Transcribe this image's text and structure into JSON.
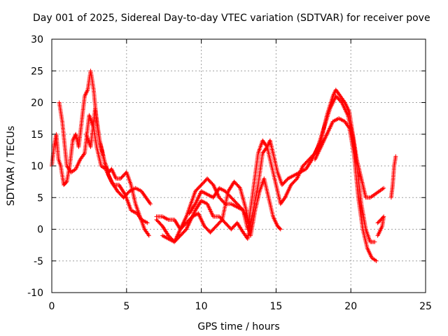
{
  "chart_data": {
    "type": "scatter",
    "title": "Day 001 of 2025, Sidereal Day-to-day VTEC variation (SDTVAR) for receiver pove",
    "xlabel": "GPS time / hours",
    "ylabel": "SDTVAR / TECUs",
    "xlim": [
      0,
      25
    ],
    "ylim": [
      -10,
      30
    ],
    "xticks": [
      0,
      5,
      10,
      15,
      20,
      25
    ],
    "yticks": [
      -10,
      -5,
      0,
      5,
      10,
      15,
      20,
      25,
      30
    ],
    "grid": true,
    "marker": "+",
    "series": [
      {
        "name": "SDTVAR",
        "color": "#ff0000",
        "tracks": [
          [
            [
              0,
              10
            ],
            [
              0.15,
              13
            ],
            [
              0.3,
              15
            ],
            [
              0.45,
              11
            ],
            [
              0.6,
              10
            ],
            [
              0.8,
              7
            ],
            [
              1.0,
              7.5
            ],
            [
              1.2,
              10
            ],
            [
              1.4,
              14
            ],
            [
              1.6,
              15
            ],
            [
              1.8,
              13
            ],
            [
              2.0,
              17
            ],
            [
              2.2,
              21
            ],
            [
              2.4,
              22
            ],
            [
              2.6,
              25
            ],
            [
              2.8,
              22
            ],
            [
              3.0,
              17
            ],
            [
              3.2,
              14
            ],
            [
              3.4,
              12
            ],
            [
              3.6,
              10
            ],
            [
              3.8,
              9
            ],
            [
              4.0,
              9.5
            ],
            [
              4.3,
              8
            ],
            [
              4.6,
              8
            ],
            [
              5.0,
              9
            ],
            [
              5.3,
              7
            ],
            [
              5.6,
              4
            ],
            [
              5.9,
              2
            ],
            [
              6.2,
              0
            ],
            [
              6.5,
              -1
            ]
          ],
          [
            [
              0.5,
              20
            ],
            [
              0.6,
              18.5
            ],
            [
              0.7,
              17
            ],
            [
              1.0,
              10
            ],
            [
              1.3,
              9
            ],
            [
              1.6,
              9.5
            ],
            [
              1.9,
              11
            ],
            [
              2.2,
              12
            ],
            [
              2.5,
              18
            ],
            [
              2.8,
              16
            ],
            [
              3.0,
              13
            ],
            [
              3.3,
              10
            ],
            [
              3.6,
              9.5
            ],
            [
              4.0,
              7.5
            ],
            [
              4.4,
              6
            ],
            [
              4.8,
              5
            ],
            [
              5.2,
              6
            ],
            [
              5.6,
              6.5
            ],
            [
              6.0,
              6
            ],
            [
              6.3,
              5
            ],
            [
              6.6,
              4
            ]
          ],
          [
            [
              2.3,
              15
            ],
            [
              2.6,
              13
            ],
            [
              2.9,
              19
            ],
            [
              3.2,
              14
            ],
            [
              3.5,
              11
            ],
            [
              3.8,
              8.5
            ],
            [
              4.1,
              7
            ],
            [
              4.5,
              7
            ],
            [
              4.9,
              5.5
            ],
            [
              5.3,
              3
            ],
            [
              5.7,
              2.5
            ],
            [
              6.0,
              1.5
            ],
            [
              6.4,
              1
            ]
          ],
          [
            [
              7.0,
              1.5
            ],
            [
              7.4,
              0.5
            ],
            [
              7.8,
              -1
            ],
            [
              8.2,
              -2
            ],
            [
              8.6,
              -1
            ],
            [
              9.0,
              0
            ],
            [
              9.3,
              1.5
            ],
            [
              9.6,
              3
            ],
            [
              10.0,
              4.5
            ],
            [
              10.4,
              4
            ],
            [
              10.8,
              2
            ],
            [
              11.2,
              2
            ],
            [
              11.6,
              1
            ],
            [
              12.0,
              0
            ],
            [
              12.4,
              1
            ],
            [
              12.8,
              -0.5
            ],
            [
              13.1,
              -1.5
            ],
            [
              13.4,
              2
            ],
            [
              13.8,
              7
            ],
            [
              14.1,
              12
            ],
            [
              14.4,
              13
            ],
            [
              14.7,
              10
            ],
            [
              15.0,
              7
            ],
            [
              15.3,
              4
            ],
            [
              15.6,
              5
            ],
            [
              16.0,
              7
            ],
            [
              16.4,
              8
            ],
            [
              16.8,
              10
            ],
            [
              17.2,
              11
            ],
            [
              17.6,
              12
            ],
            [
              18.0,
              14
            ],
            [
              18.4,
              18
            ],
            [
              18.8,
              21
            ],
            [
              19.0,
              22
            ],
            [
              19.3,
              21
            ],
            [
              19.6,
              20
            ],
            [
              19.9,
              18.5
            ],
            [
              20.2,
              14
            ],
            [
              20.4,
              11
            ],
            [
              20.6,
              9
            ],
            [
              20.8,
              7
            ],
            [
              21.0,
              5
            ],
            [
              21.3,
              5
            ],
            [
              21.6,
              5.5
            ],
            [
              21.9,
              6
            ],
            [
              22.2,
              6.5
            ]
          ],
          [
            [
              7.0,
              2
            ],
            [
              7.4,
              2
            ],
            [
              7.8,
              1.5
            ],
            [
              8.2,
              1.5
            ],
            [
              8.6,
              0
            ],
            [
              9.0,
              2
            ],
            [
              9.3,
              4
            ],
            [
              9.6,
              6
            ],
            [
              10.0,
              7
            ],
            [
              10.4,
              8
            ],
            [
              10.8,
              7
            ],
            [
              11.2,
              5
            ],
            [
              11.6,
              4
            ],
            [
              12.0,
              4
            ],
            [
              12.4,
              3.5
            ],
            [
              12.8,
              3
            ],
            [
              13.1,
              0
            ],
            [
              13.4,
              5
            ],
            [
              13.8,
              12
            ],
            [
              14.1,
              14
            ],
            [
              14.4,
              13
            ],
            [
              14.6,
              14
            ],
            [
              14.8,
              12
            ],
            [
              15.1,
              9
            ],
            [
              15.4,
              7
            ],
            [
              15.8,
              8
            ],
            [
              16.2,
              8.5
            ],
            [
              16.6,
              9
            ],
            [
              17.0,
              9.5
            ],
            [
              17.4,
              11
            ],
            [
              17.8,
              13
            ],
            [
              18.2,
              16
            ],
            [
              18.6,
              19
            ],
            [
              19.0,
              21
            ],
            [
              19.4,
              20
            ],
            [
              19.8,
              18
            ],
            [
              20.1,
              15
            ],
            [
              20.4,
              10
            ],
            [
              20.7,
              4
            ],
            [
              21.0,
              0
            ],
            [
              21.3,
              -2
            ],
            [
              21.6,
              -2
            ]
          ],
          [
            [
              7.4,
              -1
            ],
            [
              7.8,
              -1.5
            ],
            [
              8.2,
              -2
            ],
            [
              8.6,
              0
            ],
            [
              9.0,
              1
            ],
            [
              9.4,
              2
            ],
            [
              9.8,
              2.5
            ],
            [
              10.2,
              0.5
            ],
            [
              10.6,
              -0.5
            ],
            [
              11.0,
              0.5
            ],
            [
              11.4,
              1.5
            ],
            [
              11.8,
              6
            ],
            [
              12.2,
              7.5
            ],
            [
              12.6,
              6.5
            ],
            [
              13.0,
              3
            ],
            [
              13.3,
              -1
            ],
            [
              13.6,
              3
            ],
            [
              13.9,
              6
            ],
            [
              14.2,
              8
            ],
            [
              14.5,
              5
            ],
            [
              14.8,
              2
            ],
            [
              15.1,
              0.5
            ],
            [
              15.3,
              0
            ]
          ],
          [
            [
              9.2,
              2.5
            ],
            [
              9.6,
              4
            ],
            [
              10.0,
              6
            ],
            [
              10.4,
              5.5
            ],
            [
              10.8,
              5
            ],
            [
              11.2,
              6.5
            ],
            [
              11.6,
              6
            ],
            [
              12.0,
              5
            ],
            [
              12.4,
              4
            ],
            [
              12.8,
              3
            ],
            [
              13.2,
              1
            ]
          ],
          [
            [
              17.6,
              11
            ],
            [
              18.0,
              13
            ],
            [
              18.4,
              15
            ],
            [
              18.8,
              17
            ],
            [
              19.2,
              17.5
            ],
            [
              19.6,
              17
            ],
            [
              19.9,
              16
            ],
            [
              20.2,
              12
            ],
            [
              20.5,
              5
            ],
            [
              20.8,
              0
            ],
            [
              21.1,
              -3
            ],
            [
              21.4,
              -4.5
            ],
            [
              21.7,
              -5
            ]
          ],
          [
            [
              21.8,
              1
            ],
            [
              22.2,
              2
            ],
            [
              22.1,
              0.5
            ],
            [
              21.8,
              -1
            ]
          ],
          [
            [
              22.7,
              5
            ],
            [
              22.8,
              7
            ],
            [
              22.9,
              10
            ],
            [
              23.0,
              11.5
            ]
          ]
        ]
      }
    ]
  }
}
